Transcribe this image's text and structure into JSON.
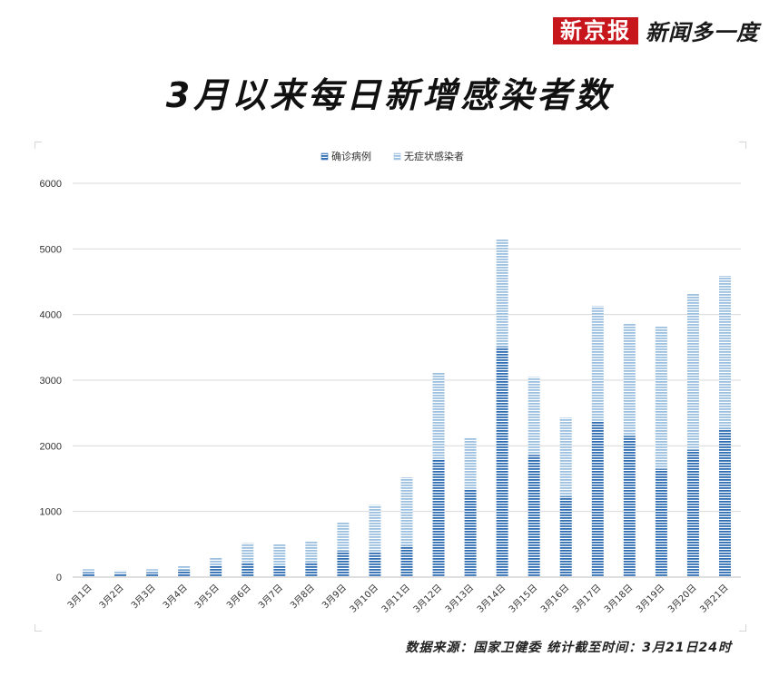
{
  "brand": {
    "logo": "新京报",
    "column": "新闻多一度"
  },
  "title": "3月以来每日新增感染者数",
  "source": "数据来源：国家卫健委  统计截至时间：3月21日24时",
  "colors": {
    "confirmed": "#2f6db4",
    "asymptomatic": "#9cc0e0",
    "grid": "#d9d9d9",
    "brand_red": "#c8161d"
  },
  "chart_data": {
    "type": "bar",
    "stacked": true,
    "title": "",
    "xlabel": "",
    "ylabel": "",
    "ylim": [
      0,
      6000
    ],
    "yticks": [
      0,
      1000,
      2000,
      3000,
      4000,
      5000,
      6000
    ],
    "grid": true,
    "legend_position": "top-center",
    "categories": [
      "3月1日",
      "3月2日",
      "3月3日",
      "3月4日",
      "3月5日",
      "3月6日",
      "3月7日",
      "3月8日",
      "3月9日",
      "3月10日",
      "3月11日",
      "3月12日",
      "3月13日",
      "3月14日",
      "3月15日",
      "3月16日",
      "3月17日",
      "3月18日",
      "3月19日",
      "3月20日",
      "3月21日"
    ],
    "series": [
      {
        "name": "确诊病例",
        "values": [
          70,
          60,
          70,
          110,
          170,
          220,
          180,
          230,
          400,
          390,
          480,
          1800,
          1330,
          3510,
          1860,
          1230,
          2380,
          2150,
          1650,
          1940,
          2260
        ]
      },
      {
        "name": "无症状感染者",
        "values": [
          50,
          40,
          50,
          70,
          130,
          300,
          320,
          320,
          430,
          710,
          1040,
          1320,
          790,
          1640,
          1190,
          1200,
          1750,
          1710,
          2170,
          2380,
          2330
        ]
      }
    ]
  }
}
